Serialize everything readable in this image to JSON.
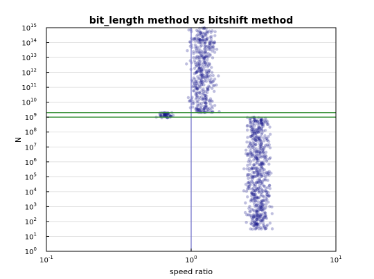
{
  "chart_data": {
    "type": "scatter",
    "title": "bit_length method vs bitshift method",
    "xlabel": "speed ratio",
    "ylabel": "N",
    "xscale": "log",
    "yscale": "log",
    "xlim": [
      0.1,
      10
    ],
    "ylim": [
      1,
      1000000000000000.0
    ],
    "grid": true,
    "legend": "none",
    "x_ticks": [
      {
        "base": "10",
        "exp": "-1",
        "value": 0.1
      },
      {
        "base": "10",
        "exp": "0",
        "value": 1
      },
      {
        "base": "10",
        "exp": "1",
        "value": 10
      }
    ],
    "y_ticks": [
      {
        "base": "10",
        "exp": "0",
        "value": 1
      },
      {
        "base": "10",
        "exp": "1",
        "value": 10
      },
      {
        "base": "10",
        "exp": "2",
        "value": 100
      },
      {
        "base": "10",
        "exp": "3",
        "value": 1000
      },
      {
        "base": "10",
        "exp": "4",
        "value": 10000
      },
      {
        "base": "10",
        "exp": "5",
        "value": 100000
      },
      {
        "base": "10",
        "exp": "6",
        "value": 1000000
      },
      {
        "base": "10",
        "exp": "7",
        "value": 10000000
      },
      {
        "base": "10",
        "exp": "8",
        "value": 100000000
      },
      {
        "base": "10",
        "exp": "9",
        "value": 1000000000
      },
      {
        "base": "10",
        "exp": "10",
        "value": 10000000000
      },
      {
        "base": "10",
        "exp": "11",
        "value": 100000000000
      },
      {
        "base": "10",
        "exp": "12",
        "value": 1000000000000
      },
      {
        "base": "10",
        "exp": "13",
        "value": 10000000000000
      },
      {
        "base": "10",
        "exp": "14",
        "value": 100000000000000
      },
      {
        "base": "10",
        "exp": "15",
        "value": 1000000000000000
      }
    ],
    "reference_lines": [
      {
        "orientation": "vertical",
        "value": 1,
        "color": "#7777cc"
      },
      {
        "orientation": "horizontal",
        "value": 1000000000,
        "color": "#2e8b2e"
      },
      {
        "orientation": "horizontal",
        "value": 2000000000,
        "color": "#2e8b2e"
      }
    ],
    "clusters": [
      {
        "x_range": [
          0.55,
          0.8
        ],
        "y_range": [
          900000000,
          2000000000
        ],
        "points": 60
      },
      {
        "x_range": [
          0.9,
          1.6
        ],
        "y_range": [
          2000000000,
          1000000000000000
        ],
        "points": 420
      },
      {
        "x_range": [
          2.2,
          3.8
        ],
        "y_range": [
          30,
          1000000000
        ],
        "points": 600
      }
    ],
    "point_color": "#1a1a8c"
  }
}
